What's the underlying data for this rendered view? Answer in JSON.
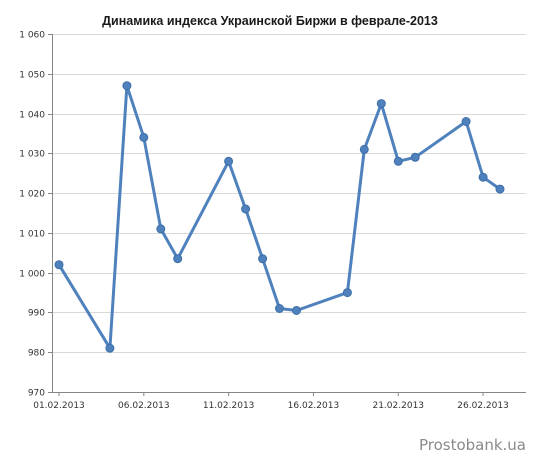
{
  "chart_data": {
    "type": "line",
    "title": "Динамика индекса Украинской Биржи в феврале-2013",
    "xlabel": "",
    "ylabel": "",
    "x_axis": {
      "type": "date",
      "range": [
        "2013-02-01",
        "2013-02-28"
      ],
      "tick_labels": [
        "01.02.2013",
        "06.02.2013",
        "11.02.2013",
        "16.02.2013",
        "21.02.2013",
        "26.02.2013"
      ],
      "tick_dates": [
        "2013-02-01",
        "2013-02-06",
        "2013-02-11",
        "2013-02-16",
        "2013-02-21",
        "2013-02-26"
      ]
    },
    "y_axis": {
      "range": [
        970,
        1060
      ],
      "tick_values": [
        970,
        980,
        990,
        1000,
        1010,
        1020,
        1030,
        1040,
        1050,
        1060
      ],
      "tick_labels": [
        "970",
        "980",
        "990",
        "1 000",
        "1 010",
        "1 020",
        "1 030",
        "1 040",
        "1 050",
        "1 060"
      ]
    },
    "grid": {
      "horizontal": true,
      "vertical": false
    },
    "legend": "none",
    "series": [
      {
        "color": "#4f81bd",
        "points": [
          {
            "x": "2013-02-01",
            "y": 1002
          },
          {
            "x": "2013-02-04",
            "y": 981
          },
          {
            "x": "2013-02-05",
            "y": 1047
          },
          {
            "x": "2013-02-06",
            "y": 1034
          },
          {
            "x": "2013-02-07",
            "y": 1011
          },
          {
            "x": "2013-02-08",
            "y": 1003.5
          },
          {
            "x": "2013-02-11",
            "y": 1028
          },
          {
            "x": "2013-02-12",
            "y": 1016
          },
          {
            "x": "2013-02-13",
            "y": 1003.5
          },
          {
            "x": "2013-02-14",
            "y": 991
          },
          {
            "x": "2013-02-15",
            "y": 990.5
          },
          {
            "x": "2013-02-18",
            "y": 995
          },
          {
            "x": "2013-02-19",
            "y": 1031
          },
          {
            "x": "2013-02-20",
            "y": 1042.5
          },
          {
            "x": "2013-02-21",
            "y": 1028
          },
          {
            "x": "2013-02-22",
            "y": 1029
          },
          {
            "x": "2013-02-25",
            "y": 1038
          },
          {
            "x": "2013-02-26",
            "y": 1024
          },
          {
            "x": "2013-02-27",
            "y": 1021
          }
        ]
      }
    ]
  },
  "watermark": "Prostobank.ua",
  "colors": {
    "series": "#4f81bd",
    "axis": "#868686",
    "grid": "#d9d9d9",
    "text": "#333333"
  }
}
